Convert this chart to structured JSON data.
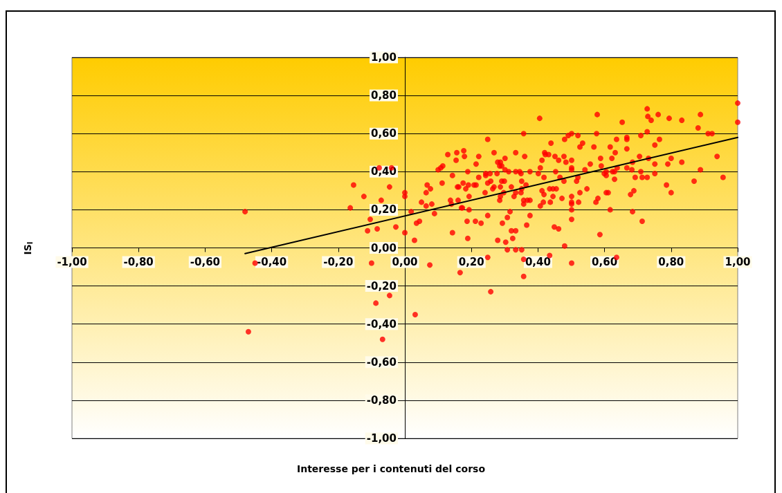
{
  "chart_data": {
    "type": "scatter",
    "xlabel": "Interesse per i contenuti del corso",
    "ylabel": "IS$_{I}$",
    "xlim": [
      -1,
      1
    ],
    "xticks": [
      {
        "value": -1,
        "label": "-1,00"
      },
      {
        "value": -0.8,
        "label": "-0,80"
      },
      {
        "value": -0.6,
        "label": "-0,60"
      },
      {
        "value": -0.4,
        "label": "-0,40"
      },
      {
        "value": -0.2,
        "label": "-0,20"
      },
      {
        "value": 0,
        "label": "0,00"
      },
      {
        "value": 0.2,
        "label": "0,20"
      },
      {
        "value": 0.4,
        "label": "0,40"
      },
      {
        "value": 0.6,
        "label": "0,60"
      },
      {
        "value": 0.8,
        "label": "0,80"
      },
      {
        "value": 1,
        "label": "1,00"
      }
    ],
    "ylim": [
      -1,
      1
    ],
    "yticks": [
      {
        "value": -1,
        "label": "-1,00"
      },
      {
        "value": -0.8,
        "label": "-0,80"
      },
      {
        "value": -0.6,
        "label": "-0,60"
      },
      {
        "value": -0.4,
        "label": "-0,40"
      },
      {
        "value": -0.2,
        "label": "-0,20"
      },
      {
        "value": 0,
        "label": "0,00"
      },
      {
        "value": 0.2,
        "label": "0,20"
      },
      {
        "value": 0.4,
        "label": "0,40"
      },
      {
        "value": 0.6,
        "label": "0,60"
      },
      {
        "value": 0.8,
        "label": "0,80"
      },
      {
        "value": 1,
        "label": "1,00"
      }
    ],
    "grid": "y",
    "series": [
      {
        "color": "#ff0000",
        "marker": "circle",
        "x": [
          -0.48,
          -0.45,
          -0.47,
          -0.154,
          -0.164,
          -0.123,
          -0.104,
          -0.112,
          -0.083,
          -0.071,
          -0.046,
          -0.04,
          -0.077,
          -0.027,
          -0.1,
          -0.046,
          -0.087,
          -0.067,
          0.031,
          0,
          0,
          0,
          0.019,
          0.029,
          0.035,
          0.044,
          0.05,
          0.064,
          0.081,
          0.064,
          0.067,
          0.077,
          0.089,
          0.075,
          0.1,
          0.108,
          0.114,
          0.112,
          0.129,
          0.143,
          0.137,
          0.14,
          0.143,
          0.154,
          0.156,
          0.158,
          0.162,
          0.16,
          0.175,
          0.177,
          0.179,
          0.183,
          0.17,
          0.173,
          0.189,
          0.191,
          0.193,
          0.193,
          0.187,
          0.189,
          0.166,
          0.208,
          0.214,
          0.214,
          0.222,
          0.222,
          0.212,
          0.229,
          0.241,
          0.243,
          0.243,
          0.249,
          0.249,
          0.249,
          0.249,
          0.258,
          0.256,
          0.258,
          0.264,
          0.268,
          0.268,
          0.277,
          0.279,
          0.287,
          0.285,
          0.291,
          0.301,
          0.301,
          0.312,
          0.291,
          0.299,
          0.287,
          0.297,
          0.287,
          0.285,
          0.32,
          0.316,
          0.308,
          0.293,
          0.279,
          0.303,
          0.308,
          0.32,
          0.333,
          0.324,
          0.333,
          0.351,
          0.357,
          0.357,
          0.333,
          0.333,
          0.345,
          0.349,
          0.328,
          0.333,
          0.351,
          0.364,
          0.351,
          0.349,
          0.357,
          0.357,
          0.368,
          0.376,
          0.376,
          0.366,
          0.357,
          0.36,
          0.376,
          0.405,
          0.401,
          0.407,
          0.412,
          0.418,
          0.407,
          0.412,
          0.418,
          0.416,
          0.42,
          0.422,
          0.432,
          0.439,
          0.435,
          0.445,
          0.455,
          0.437,
          0.445,
          0.453,
          0.451,
          0.462,
          0.466,
          0.472,
          0.449,
          0.462,
          0.435,
          0.478,
          0.478,
          0.484,
          0.48,
          0.491,
          0.501,
          0.48,
          0.501,
          0.501,
          0.501,
          0.501,
          0.501,
          0.501,
          0.501,
          0.501,
          0.501,
          0.52,
          0.526,
          0.534,
          0.52,
          0.516,
          0.526,
          0.522,
          0.541,
          0.547,
          0.557,
          0.568,
          0.578,
          0.576,
          0.588,
          0.59,
          0.58,
          0.574,
          0.586,
          0.599,
          0.605,
          0.605,
          0.605,
          0.611,
          0.617,
          0.617,
          0.622,
          0.632,
          0.636,
          0.624,
          0.63,
          0.63,
          0.638,
          0.636,
          0.653,
          0.667,
          0.667,
          0.667,
          0.667,
          0.682,
          0.684,
          0.692,
          0.688,
          0.678,
          0.684,
          0.709,
          0.705,
          0.709,
          0.713,
          0.713,
          0.728,
          0.73,
          0.74,
          0.728,
          0.732,
          0.728,
          0.761,
          0.751,
          0.765,
          0.751,
          0.751,
          0.794,
          0.79,
          0.8,
          0.786,
          0.8,
          0.832,
          0.832,
          0.869,
          0.881,
          0.888,
          0.888,
          0.911,
          0.923,
          0.938,
          0.956,
          1.0,
          1.0
        ],
        "values": [
          0.19,
          -0.08,
          -0.44,
          0.33,
          0.21,
          0.27,
          0.15,
          0.09,
          0.1,
          0.25,
          0.32,
          0.42,
          0.42,
          0.11,
          -0.08,
          -0.25,
          -0.29,
          -0.48,
          -0.35,
          0.29,
          0.27,
          0.08,
          0.19,
          0.04,
          0.13,
          0.14,
          0.24,
          0.22,
          0.23,
          0.29,
          0.33,
          0.31,
          0.18,
          -0.09,
          0.41,
          0.42,
          0.43,
          0.34,
          0.49,
          0.38,
          0.25,
          0.23,
          0.08,
          0.46,
          0.5,
          0.32,
          0.32,
          0.25,
          0.34,
          0.51,
          0.48,
          0.31,
          0.21,
          0.21,
          0.4,
          0.33,
          0.27,
          0.2,
          0.14,
          0.05,
          -0.13,
          0.33,
          0.33,
          0.44,
          0.48,
          0.37,
          0.14,
          0.13,
          0.29,
          0.39,
          0.38,
          0.57,
          0.34,
          0.17,
          -0.05,
          -0.23,
          0.39,
          0.35,
          0.31,
          0.32,
          0.5,
          0.39,
          0.45,
          0.45,
          0.43,
          0.43,
          0.47,
          0.41,
          0.4,
          0.35,
          0.35,
          0.32,
          0.29,
          0.27,
          0.25,
          0.32,
          0.19,
          0.16,
          0.13,
          0.04,
          0.03,
          -0.01,
          0.09,
          0.09,
          0.05,
          -0.01,
          -0.01,
          -0.06,
          -0.15,
          0.5,
          0.4,
          0.4,
          0.39,
          0.27,
          0.29,
          0.35,
          0.33,
          0.31,
          0.29,
          0.25,
          0.23,
          0.25,
          0.25,
          0.17,
          0.12,
          0.6,
          0.48,
          0.4,
          0.68,
          0.39,
          0.42,
          0.46,
          0.37,
          0.22,
          0.3,
          0.28,
          0.24,
          0.5,
          0.49,
          0.49,
          0.55,
          0.31,
          0.31,
          0.31,
          0.24,
          0.27,
          0.4,
          0.48,
          0.46,
          0.37,
          0.26,
          0.11,
          0.1,
          -0.04,
          0.35,
          0.48,
          0.45,
          0.57,
          0.59,
          0.6,
          0.01,
          0.46,
          0.42,
          0.41,
          0.27,
          0.24,
          0.23,
          0.2,
          0.15,
          -0.08,
          0.59,
          0.53,
          0.55,
          0.37,
          0.35,
          0.29,
          0.24,
          0.41,
          0.31,
          0.44,
          0.53,
          0.7,
          0.6,
          0.47,
          0.43,
          0.26,
          0.24,
          0.07,
          0.39,
          0.4,
          0.38,
          0.29,
          0.29,
          0.2,
          0.53,
          0.47,
          0.5,
          0.57,
          0.4,
          0.4,
          0.36,
          0.42,
          -0.05,
          0.66,
          0.58,
          0.57,
          0.52,
          0.42,
          0.41,
          0.45,
          0.37,
          0.3,
          0.28,
          0.19,
          0.59,
          0.48,
          0.4,
          0.37,
          0.14,
          0.73,
          0.69,
          0.67,
          0.61,
          0.47,
          0.37,
          0.7,
          0.54,
          0.57,
          0.44,
          0.39,
          0.68,
          0.44,
          0.47,
          0.33,
          0.29,
          0.67,
          0.45,
          0.35,
          0.63,
          0.7,
          0.41,
          0.6,
          0.6,
          0.48,
          0.37,
          0.76,
          0.66
        ]
      },
      {
        "type": "line",
        "color": "#000000",
        "marker": "none",
        "line_style": "solid",
        "x": [
          -0.48,
          1.0
        ],
        "values": [
          -0.03,
          0.58
        ]
      }
    ]
  }
}
